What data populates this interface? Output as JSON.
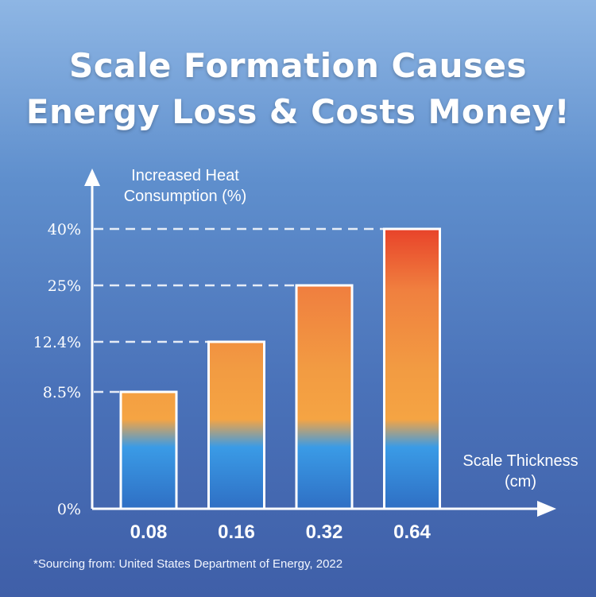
{
  "title": {
    "line1": "Scale Formation Causes",
    "line2": "Energy Loss & Costs Money!"
  },
  "source": "*Sourcing from: United States Department of Energy, 2022",
  "chart_data": {
    "type": "bar",
    "categories": [
      "0.08",
      "0.16",
      "0.32",
      "0.64"
    ],
    "values": [
      8.5,
      12.4,
      25,
      40
    ],
    "y_ticks": [
      {
        "value": 0,
        "label": "0%"
      },
      {
        "value": 8.5,
        "label": "8.5%"
      },
      {
        "value": 12.4,
        "label": "12.4%"
      },
      {
        "value": 25,
        "label": "25%"
      },
      {
        "value": 40,
        "label": "40%"
      }
    ],
    "ylabel_lines": [
      "Increased Heat",
      "Consumption (%)"
    ],
    "xlabel_lines": [
      "Scale Thickness",
      "(cm)"
    ],
    "ylim": [
      0,
      40
    ],
    "grid": false,
    "colors": {
      "bar_top": "#e8432a",
      "bar_mid": "#f5a443",
      "bar_bottom": "#2f6fc4",
      "bar_blue": "#3a9be6",
      "axis": "#ffffff"
    }
  }
}
